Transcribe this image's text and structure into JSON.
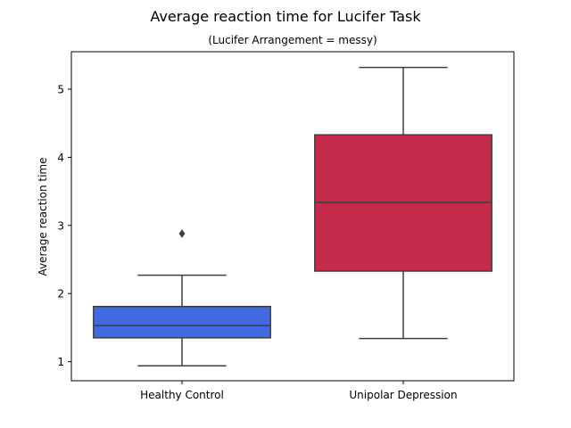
{
  "chart_data": {
    "type": "box",
    "title": "Average reaction time for Lucifer Task",
    "subtitle": "(Lucifer Arrangement = messy)",
    "xlabel": "",
    "ylabel": "Average reaction time",
    "ylim": [
      0.72,
      5.55
    ],
    "y_ticks": [
      "1",
      "2",
      "3",
      "4",
      "5"
    ],
    "grid": false,
    "categories": [
      "Healthy Control",
      "Unipolar Depression"
    ],
    "boxes": [
      {
        "category": "Healthy Control",
        "color": "#4169e1",
        "whisker_low": 0.94,
        "q1": 1.35,
        "median": 1.53,
        "q3": 1.81,
        "whisker_high": 2.27,
        "outliers": [
          2.88
        ]
      },
      {
        "category": "Unipolar Depression",
        "color": "#c62a4b",
        "whisker_low": 1.34,
        "q1": 2.33,
        "median": 3.34,
        "q3": 4.33,
        "whisker_high": 5.32,
        "outliers": []
      }
    ]
  }
}
